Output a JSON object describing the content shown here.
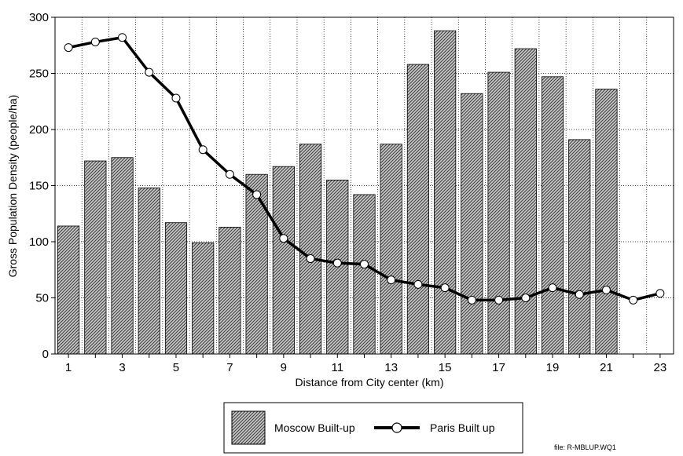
{
  "chart_data": {
    "type": "bar",
    "xlabel": "Distance from City center (km)",
    "ylabel": "Gross Population Density (people/ha)",
    "ylim": [
      0,
      300
    ],
    "yticks": [
      0,
      50,
      100,
      150,
      200,
      250,
      300
    ],
    "x": [
      1,
      2,
      3,
      4,
      5,
      6,
      7,
      8,
      9,
      10,
      11,
      12,
      13,
      14,
      15,
      16,
      17,
      18,
      19,
      20,
      21,
      22,
      23
    ],
    "xtick_labels": [
      "1",
      "3",
      "5",
      "7",
      "9",
      "11",
      "13",
      "15",
      "17",
      "19",
      "21",
      "23"
    ],
    "grid": true,
    "legend_position": "bottom-center",
    "series": [
      {
        "name": "Moscow Built-up",
        "type": "bar",
        "color": "#9a9a9a",
        "pattern": "diagonal-hatch",
        "values": [
          114,
          172,
          175,
          148,
          117,
          99,
          113,
          160,
          167,
          187,
          155,
          142,
          187,
          258,
          288,
          232,
          251,
          272,
          247,
          191,
          236,
          null,
          null
        ]
      },
      {
        "name": "Paris Built up",
        "type": "line",
        "color": "#000000",
        "marker": "open-circle",
        "values": [
          273,
          278,
          282,
          251,
          228,
          182,
          160,
          142,
          103,
          85,
          81,
          80,
          66,
          62,
          59,
          48,
          48,
          50,
          59,
          53,
          57,
          48,
          54
        ]
      }
    ]
  },
  "footer": {
    "file_note": "file: R-MBLUP.WQ1"
  }
}
